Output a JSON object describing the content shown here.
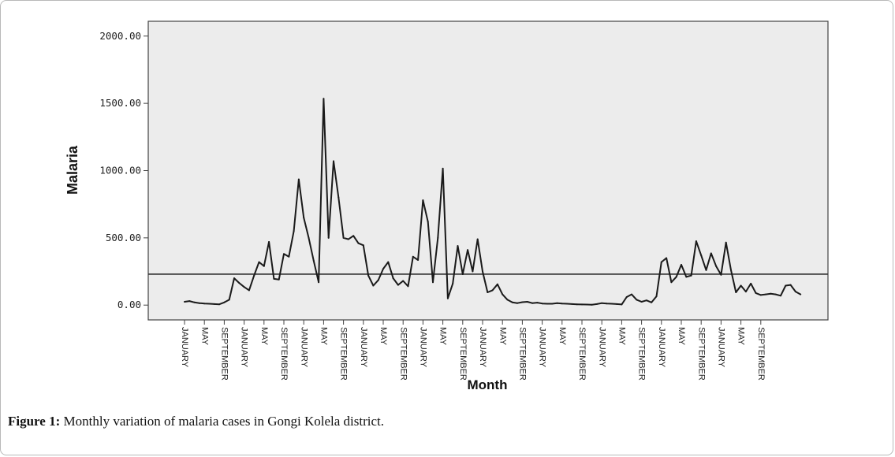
{
  "caption": {
    "label": "Figure 1:",
    "text": " Monthly variation of malaria cases in Gongi Kolela district."
  },
  "chart_data": {
    "type": "line",
    "title": "",
    "xlabel": "Month",
    "ylabel": "Malaria",
    "ylim": [
      -110,
      2110
    ],
    "yticks": [
      0,
      500,
      1000,
      1500,
      2000
    ],
    "ytick_labels": [
      "0.00",
      "500.00",
      "1000.00",
      "1500.00",
      "2000.00"
    ],
    "x_tick_labels": [
      "JANUARY",
      "MAY",
      "SEPTEMBER",
      "JANUARY",
      "MAY",
      "SEPTEMBER",
      "JANUARY",
      "MAY",
      "SEPTEMBER",
      "JANUARY",
      "MAY",
      "SEPTEMBER",
      "JANUARY",
      "MAY",
      "SEPTEMBER",
      "JANUARY",
      "MAY",
      "SEPTEMBER",
      "JANUARY",
      "MAY",
      "SEPTEMBER",
      "JANUARY",
      "MAY",
      "SEPTEMBER",
      "JANUARY",
      "MAY",
      "SEPTEMBER",
      "JANUARY",
      "MAY",
      "SEPTEMBER"
    ],
    "reference_line": 230,
    "plot_background": "#ececec",
    "line_color": "#1a1a1a",
    "grid": false,
    "legend": "none",
    "series": [
      {
        "values": [
          25,
          30,
          20,
          15,
          12,
          10,
          8,
          6,
          20,
          40,
          200,
          165,
          135,
          110,
          220,
          320,
          290,
          470,
          195,
          190,
          380,
          360,
          550,
          935,
          650,
          500,
          330,
          170,
          1535,
          500,
          1070,
          800,
          500,
          490,
          515,
          460,
          445,
          220,
          145,
          185,
          270,
          320,
          200,
          150,
          180,
          140,
          360,
          335,
          780,
          620,
          170,
          500,
          1015,
          50,
          160,
          440,
          230,
          410,
          250,
          490,
          250,
          95,
          110,
          155,
          80,
          40,
          20,
          15,
          22,
          25,
          15,
          18,
          12,
          10,
          10,
          15,
          12,
          10,
          8,
          6,
          5,
          4,
          3,
          8,
          15,
          12,
          10,
          8,
          5,
          60,
          80,
          40,
          25,
          35,
          20,
          65,
          320,
          350,
          170,
          210,
          300,
          210,
          220,
          475,
          370,
          260,
          385,
          290,
          225,
          465,
          260,
          95,
          145,
          100,
          160,
          90,
          75,
          80,
          85,
          80,
          70,
          145,
          150,
          100,
          80
        ]
      }
    ]
  }
}
